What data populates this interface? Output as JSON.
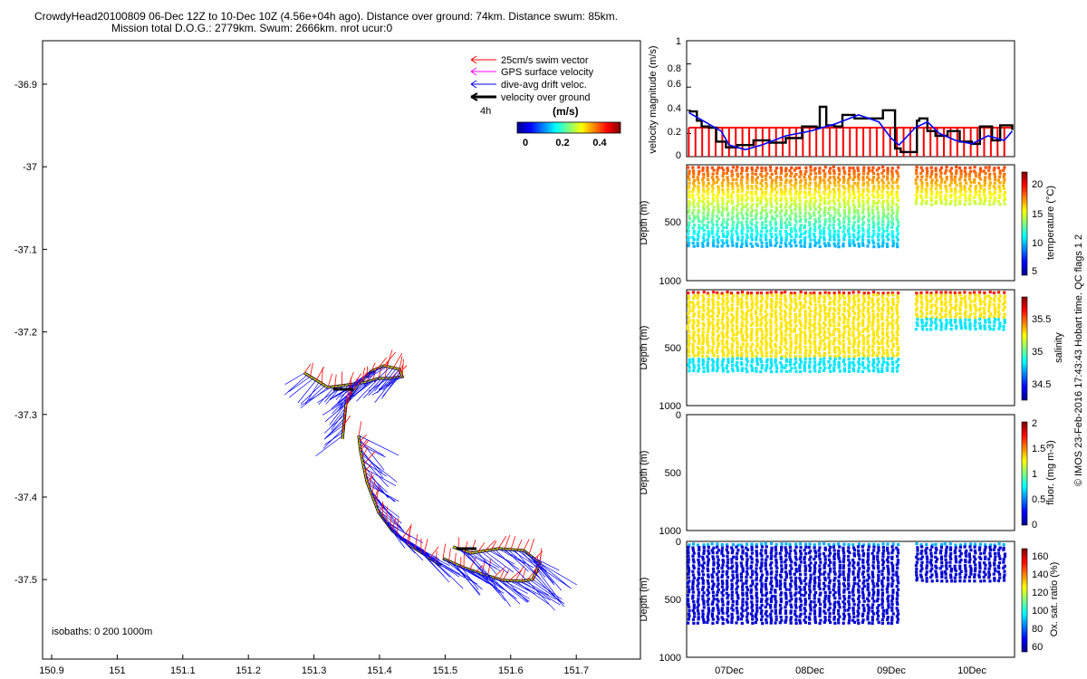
{
  "title": {
    "line1": "CrowdyHead20100809 06-Dec 12Z to 10-Dec 10Z (4.56e+04h ago). Distance over ground: 74km. Distance swum: 85km.",
    "line2": "Mission total D.O.G.: 2779km. Swum: 2666km. nrot ucur:0"
  },
  "map": {
    "legend": [
      {
        "label": "25cm/s swim vector",
        "color": "#ff0000"
      },
      {
        "label": "GPS surface velocity",
        "color": "#ff00ff"
      },
      {
        "label": "dive-avg drift veloc.",
        "color": "#0000ff"
      },
      {
        "label": "velocity over ground",
        "color": "#000000"
      }
    ],
    "time_label": "4h",
    "colorbar_title": "(m/s)",
    "colorbar_ticks": [
      "0",
      "0.2",
      "0.4"
    ],
    "isobaths_label": "isobaths: 0   200  1000m",
    "x_ticks": [
      "150.9",
      "151",
      "151.1",
      "151.2",
      "151.3",
      "151.4",
      "151.5",
      "151.6",
      "151.7"
    ],
    "y_ticks": [
      "-36.9",
      "-37",
      "-37.1",
      "-37.2",
      "-37.3",
      "-37.4",
      "-37.5"
    ]
  },
  "chart_data": [
    {
      "type": "line",
      "title": "",
      "ylabel": "velocity magnitude (m/s)",
      "ylim": [
        0,
        1
      ],
      "y_ticks": [
        "1",
        "0.8",
        "0.6",
        "0.4",
        "0.2",
        "0"
      ],
      "series": [
        {
          "name": "velocity over ground",
          "color": "#000000",
          "x": [
            6.5,
            6.56,
            6.6,
            6.66,
            6.75,
            6.84,
            6.96,
            7.1,
            7.3,
            7.5,
            7.7,
            7.9,
            8.0,
            8.08,
            8.12,
            8.2,
            8.3,
            8.4,
            8.55,
            8.7,
            8.9,
            9.05,
            9.12,
            9.32,
            9.35,
            9.45,
            9.55,
            9.7,
            9.85,
            10.0,
            10.1,
            10.25,
            10.35,
            10.5
          ],
          "y": [
            0.39,
            0.39,
            0.31,
            0.26,
            0.25,
            0.13,
            0.08,
            0.1,
            0.14,
            0.12,
            0.16,
            0.26,
            0.26,
            0.25,
            0.43,
            0.27,
            0.26,
            0.36,
            0.33,
            0.33,
            0.4,
            0.07,
            0.04,
            0.31,
            0.33,
            0.22,
            0.18,
            0.22,
            0.13,
            0.11,
            0.26,
            0.14,
            0.27,
            0.23
          ]
        },
        {
          "name": "dive-avg drift veloc.",
          "color": "#0000ff",
          "x": [
            6.5,
            6.7,
            6.9,
            7.0,
            7.2,
            7.4,
            7.7,
            8.0,
            8.3,
            8.6,
            8.85,
            9.0,
            9.1,
            9.3,
            9.45,
            9.6,
            9.8,
            10.0,
            10.2,
            10.4,
            10.5
          ],
          "y": [
            0.38,
            0.3,
            0.22,
            0.1,
            0.06,
            0.1,
            0.18,
            0.22,
            0.28,
            0.36,
            0.3,
            0.16,
            0.1,
            0.25,
            0.3,
            0.2,
            0.14,
            0.11,
            0.18,
            0.14,
            0.22
          ]
        },
        {
          "name": "25cm/s swim vector",
          "color": "#ff0000",
          "level": 0.25
        }
      ]
    },
    {
      "type": "scatter",
      "ylabel": "Depth (m)",
      "ylim": [
        0,
        1000
      ],
      "y_ticks": [
        "500",
        "1000"
      ],
      "colorbar_label": "temperature (°C)",
      "colorbar_ticks": [
        "20",
        "15",
        "10",
        "5"
      ],
      "clim": [
        4,
        23
      ]
    },
    {
      "type": "scatter",
      "ylabel": "Depth (m)",
      "ylim": [
        0,
        1000
      ],
      "y_ticks": [
        "500",
        "1000"
      ],
      "colorbar_label": "salinity",
      "colorbar_ticks": [
        "35.5",
        "35",
        "34.5"
      ],
      "clim": [
        34.3,
        35.9
      ]
    },
    {
      "type": "scatter",
      "ylabel": "Depth (m)",
      "ylim": [
        0,
        1000
      ],
      "y_ticks": [
        "0",
        "500",
        "1000"
      ],
      "colorbar_label": "fluor. (mg m-3)",
      "colorbar_ticks": [
        "2",
        "1.5",
        "1",
        "0.5",
        "0"
      ],
      "clim": [
        0,
        2
      ]
    },
    {
      "type": "scatter",
      "ylabel": "Depth (m)",
      "ylim": [
        0,
        1000
      ],
      "y_ticks": [
        "0",
        "500",
        "1000"
      ],
      "x_ticks": [
        "07Dec",
        "08Dec",
        "09Dec",
        "10Dec"
      ],
      "colorbar_label": "Ox. sat. ratio (%)",
      "colorbar_ticks": [
        "160",
        "140",
        "120",
        "100",
        "80",
        "60"
      ],
      "clim": [
        58,
        168
      ]
    }
  ],
  "side_text": "© IMOS 23-Feb-2016 17:43:43 Hobart time. QC flags 1  2"
}
